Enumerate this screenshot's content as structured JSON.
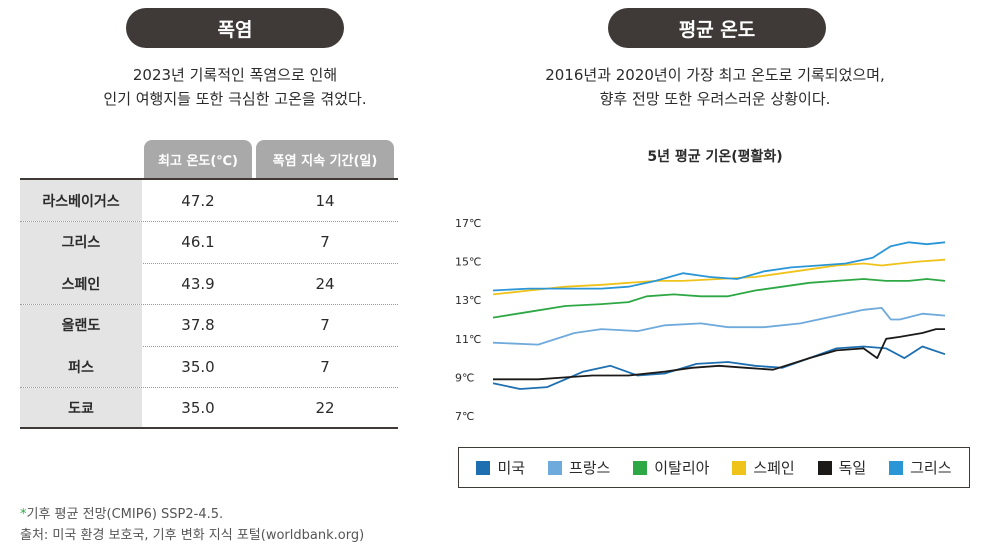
{
  "left": {
    "heading": "폭염",
    "desc_line1": "2023년 기록적인 폭염으로 인해",
    "desc_line2": "인기 여행지들 또한 극심한 고온을 겪었다.",
    "table": {
      "headers": [
        "최고 온도(℃)",
        "폭염 지속 기간(일)"
      ],
      "rows": [
        {
          "name": "라스베이거스",
          "temp": "47.2",
          "days": "14"
        },
        {
          "name": "그리스",
          "temp": "46.1",
          "days": "7"
        },
        {
          "name": "스페인",
          "temp": "43.9",
          "days": "24"
        },
        {
          "name": "올랜도",
          "temp": "37.8",
          "days": "7"
        },
        {
          "name": "퍼스",
          "temp": "35.0",
          "days": "7"
        },
        {
          "name": "도쿄",
          "temp": "35.0",
          "days": "22"
        }
      ]
    }
  },
  "right": {
    "heading": "평균 온도",
    "desc_line1": "2016년과 2020년이 가장 최고 온도로 기록되었으며,",
    "desc_line2": "향후 전망 또한 우려스러운 상황이다."
  },
  "footnote": {
    "mark": "*",
    "note": "기후 평균 전망(CMIP6) SSP2-4.5.",
    "source": "출처: 미국 환경 보호국, 기후 변화 지식 포털(worldbank.org)"
  },
  "chart_data": {
    "type": "line",
    "title": "5년 평균 기온(평활화)",
    "y_ticks": [
      "17℃",
      "15℃",
      "13℃",
      "11℃",
      "9℃",
      "7℃"
    ],
    "ylim": [
      7,
      17
    ],
    "xlim": [
      0,
      100
    ],
    "legend_position": "bottom",
    "series": [
      {
        "name": "미국",
        "color": "#1e6fb0",
        "points": [
          [
            0,
            8.7
          ],
          [
            6,
            8.4
          ],
          [
            12,
            8.5
          ],
          [
            20,
            9.3
          ],
          [
            26,
            9.6
          ],
          [
            32,
            9.1
          ],
          [
            38,
            9.2
          ],
          [
            45,
            9.7
          ],
          [
            52,
            9.8
          ],
          [
            58,
            9.6
          ],
          [
            64,
            9.5
          ],
          [
            70,
            10.0
          ],
          [
            76,
            10.5
          ],
          [
            82,
            10.6
          ],
          [
            87,
            10.5
          ],
          [
            91,
            10.0
          ],
          [
            95,
            10.6
          ],
          [
            100,
            10.2
          ]
        ]
      },
      {
        "name": "프랑스",
        "color": "#6faadc",
        "points": [
          [
            0,
            10.8
          ],
          [
            10,
            10.7
          ],
          [
            18,
            11.3
          ],
          [
            24,
            11.5
          ],
          [
            32,
            11.4
          ],
          [
            38,
            11.7
          ],
          [
            46,
            11.8
          ],
          [
            52,
            11.6
          ],
          [
            60,
            11.6
          ],
          [
            68,
            11.8
          ],
          [
            76,
            12.2
          ],
          [
            82,
            12.5
          ],
          [
            86,
            12.6
          ],
          [
            88,
            12.0
          ],
          [
            90,
            12.0
          ],
          [
            95,
            12.3
          ],
          [
            100,
            12.2
          ]
        ]
      },
      {
        "name": "이탈리아",
        "color": "#2ea845",
        "points": [
          [
            0,
            12.1
          ],
          [
            8,
            12.4
          ],
          [
            16,
            12.7
          ],
          [
            24,
            12.8
          ],
          [
            30,
            12.9
          ],
          [
            34,
            13.2
          ],
          [
            40,
            13.3
          ],
          [
            46,
            13.2
          ],
          [
            52,
            13.2
          ],
          [
            58,
            13.5
          ],
          [
            64,
            13.7
          ],
          [
            70,
            13.9
          ],
          [
            76,
            14.0
          ],
          [
            82,
            14.1
          ],
          [
            87,
            14.0
          ],
          [
            92,
            14.0
          ],
          [
            96,
            14.1
          ],
          [
            100,
            14.0
          ]
        ]
      },
      {
        "name": "스페인",
        "color": "#f0c31a",
        "points": [
          [
            0,
            13.3
          ],
          [
            8,
            13.5
          ],
          [
            16,
            13.7
          ],
          [
            24,
            13.8
          ],
          [
            30,
            13.9
          ],
          [
            36,
            14.0
          ],
          [
            42,
            14.0
          ],
          [
            50,
            14.1
          ],
          [
            58,
            14.2
          ],
          [
            64,
            14.4
          ],
          [
            70,
            14.6
          ],
          [
            76,
            14.8
          ],
          [
            82,
            14.9
          ],
          [
            86,
            14.8
          ],
          [
            90,
            14.9
          ],
          [
            94,
            15.0
          ],
          [
            100,
            15.1
          ]
        ]
      },
      {
        "name": "독일",
        "color": "#1c1a19",
        "points": [
          [
            0,
            8.9
          ],
          [
            10,
            8.9
          ],
          [
            16,
            9.0
          ],
          [
            22,
            9.1
          ],
          [
            30,
            9.1
          ],
          [
            38,
            9.3
          ],
          [
            44,
            9.5
          ],
          [
            50,
            9.6
          ],
          [
            56,
            9.5
          ],
          [
            62,
            9.4
          ],
          [
            70,
            10.0
          ],
          [
            76,
            10.4
          ],
          [
            82,
            10.5
          ],
          [
            85,
            10.0
          ],
          [
            87,
            11.0
          ],
          [
            90,
            11.1
          ],
          [
            95,
            11.3
          ],
          [
            98,
            11.5
          ],
          [
            100,
            11.5
          ]
        ]
      },
      {
        "name": "그리스",
        "color": "#2b96d6",
        "points": [
          [
            0,
            13.5
          ],
          [
            8,
            13.6
          ],
          [
            16,
            13.6
          ],
          [
            24,
            13.6
          ],
          [
            30,
            13.7
          ],
          [
            36,
            14.0
          ],
          [
            42,
            14.4
          ],
          [
            48,
            14.2
          ],
          [
            54,
            14.1
          ],
          [
            60,
            14.5
          ],
          [
            66,
            14.7
          ],
          [
            72,
            14.8
          ],
          [
            78,
            14.9
          ],
          [
            84,
            15.2
          ],
          [
            88,
            15.8
          ],
          [
            92,
            16.0
          ],
          [
            96,
            15.9
          ],
          [
            100,
            16.0
          ]
        ]
      }
    ]
  }
}
